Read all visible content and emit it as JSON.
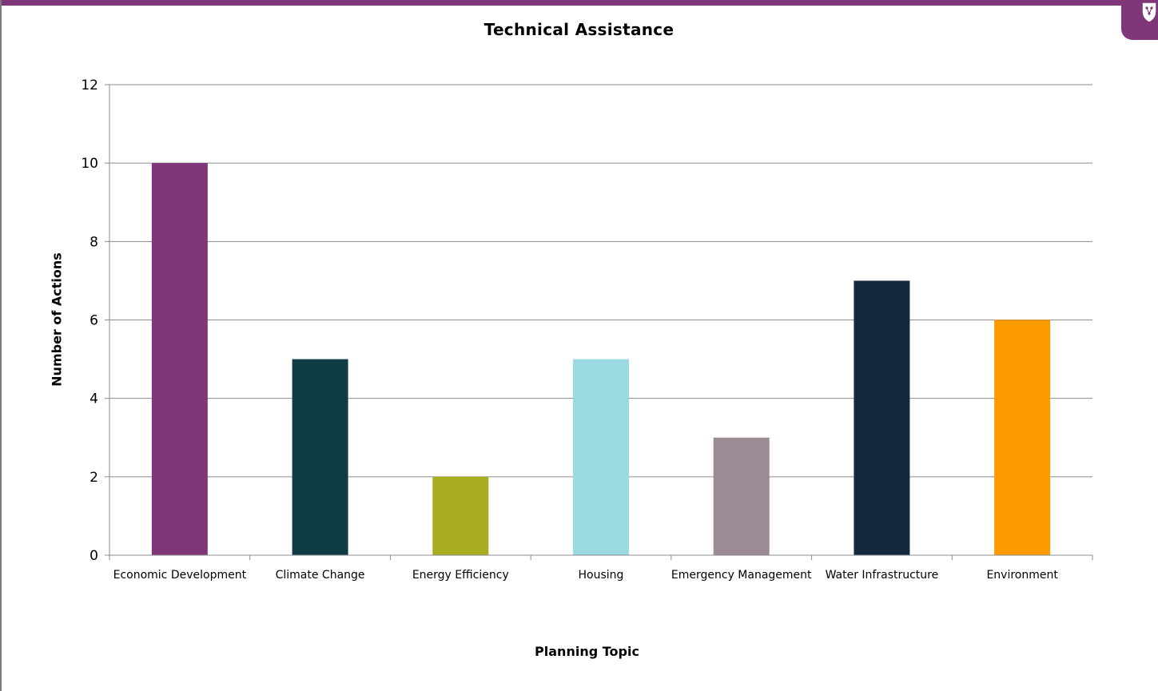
{
  "colors": {
    "accent": "#7f3779",
    "frame": "#7a7a7a",
    "gridline": "#8c8c8c",
    "axis": "#8c8c8c"
  },
  "icons": {
    "corner_badge": "shield-network-icon"
  },
  "chart_data": {
    "type": "bar",
    "title": "Technical Assistance",
    "xlabel": "Planning Topic",
    "ylabel": "Number of Actions",
    "ylim": [
      0,
      12
    ],
    "yticks": [
      "0",
      "2",
      "4",
      "6",
      "8",
      "10",
      "12"
    ],
    "grid": true,
    "categories": [
      "Economic Development",
      "Climate Change",
      "Energy Efficiency",
      "Housing",
      "Emergency Management",
      "Water Infrastructure",
      "Environment"
    ],
    "values": [
      10,
      5,
      2,
      5,
      3,
      7,
      6
    ],
    "bar_colors": [
      "#7f3779",
      "#103c44",
      "#a8ad22",
      "#99d9e1",
      "#9a8b94",
      "#14293f",
      "#fc9a00"
    ]
  }
}
